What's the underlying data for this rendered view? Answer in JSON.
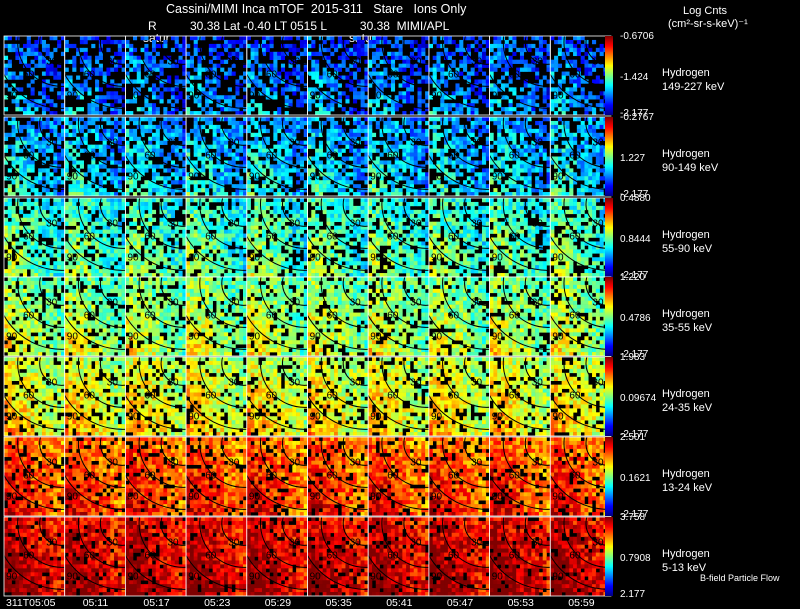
{
  "header": {
    "title": "Cassini/MIMI Inca mTOF  2015-311   Stare   Ions Only",
    "subtitle": "R          30.38 Lat -0.40 LT 0515 L          30.38  MIMI/APL",
    "units_title": "Log Cnts",
    "units_sub": "(cm²-sr-s-keV)⁻¹",
    "satur_labels": [
      "satur",
      "saturn"
    ]
  },
  "time_labels": [
    "311T05:05",
    "05:11",
    "05:17",
    "05:23",
    "05:29",
    "05:35",
    "05:41",
    "05:47",
    "05:53",
    "05:59"
  ],
  "footer": {
    "flow_label": "B-field Particle Flow"
  },
  "rows": [
    {
      "species": "Hydrogen",
      "energy": "149-227 keV",
      "cb_top": "-0.6706",
      "cb_mid": "-1.424",
      "cb_bot": "-2.177",
      "level": 0.15,
      "fill": 0.55
    },
    {
      "species": "Hydrogen",
      "energy": "90-149 keV",
      "cb_top": "-0.2767",
      "cb_mid": "1.227",
      "cb_bot": "-2.177",
      "level": 0.24,
      "fill": 0.68
    },
    {
      "species": "Hydrogen",
      "energy": "55-90 keV",
      "cb_top": "0.4880",
      "cb_mid": "0.8444",
      "cb_bot": "-2.177",
      "level": 0.36,
      "fill": 0.75
    },
    {
      "species": "Hydrogen",
      "energy": "35-55 keV",
      "cb_top": "1.220",
      "cb_mid": "0.4786",
      "cb_bot": "-2.177",
      "level": 0.44,
      "fill": 0.8
    },
    {
      "species": "Hydrogen",
      "energy": "24-35 keV",
      "cb_top": "1.983",
      "cb_mid": "0.09674",
      "cb_bot": "-2.177",
      "level": 0.52,
      "fill": 0.8
    },
    {
      "species": "Hydrogen",
      "energy": "13-24 keV",
      "cb_top": "2.501",
      "cb_mid": "0.1621",
      "cb_bot": "-2.177",
      "level": 0.72,
      "fill": 0.85
    },
    {
      "species": "Hydrogen",
      "energy": "5-13 keV",
      "cb_top": "3.758",
      "cb_mid": "0.7908",
      "cb_bot": "2.177",
      "level": 0.84,
      "fill": 0.88
    }
  ],
  "contour_labels": [
    "30",
    "60",
    "90"
  ],
  "chart_data": {
    "type": "heatmap",
    "title": "Cassini/MIMI Inca mTOF  2015-311   Stare   Ions Only",
    "x": [
      "311T05:05",
      "05:11",
      "05:17",
      "05:23",
      "05:29",
      "05:35",
      "05:41",
      "05:47",
      "05:53",
      "05:59"
    ],
    "series": [
      {
        "name": "Hydrogen 149-227 keV",
        "colorbar": [
          -2.177,
          -1.424,
          -0.6706
        ]
      },
      {
        "name": "Hydrogen 90-149 keV",
        "colorbar": [
          -2.177,
          1.227,
          -0.2767
        ]
      },
      {
        "name": "Hydrogen 55-90 keV",
        "colorbar": [
          -2.177,
          0.8444,
          0.488
        ]
      },
      {
        "name": "Hydrogen 35-55 keV",
        "colorbar": [
          -2.177,
          0.4786,
          1.22
        ]
      },
      {
        "name": "Hydrogen 24-35 keV",
        "colorbar": [
          -2.177,
          0.09674,
          1.983
        ]
      },
      {
        "name": "Hydrogen 13-24 keV",
        "colorbar": [
          -2.177,
          0.1621,
          2.501
        ]
      },
      {
        "name": "Hydrogen 5-13 keV",
        "colorbar": [
          2.177,
          0.7908,
          3.758
        ]
      }
    ],
    "colorbar_label": "Log Cnts (cm²-sr-s-keV)⁻¹"
  }
}
